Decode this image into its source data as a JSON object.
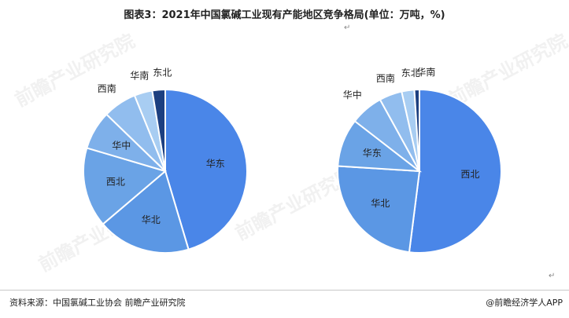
{
  "title": "图表3：2021年中国氯碱工业现有产能地区竞争格局(单位：万吨，%)",
  "paragraph_mark": "↵",
  "source": "资料来源：中国氯碱工业协会 前瞻产业研究院",
  "brand": "@前瞻经济学人APP",
  "watermark": "前瞻产业研究院",
  "chart_data": [
    {
      "type": "pie",
      "title": "",
      "slices": [
        {
          "label": "华东",
          "value": 44.5,
          "color": "#4a86e8"
        },
        {
          "label": "华北",
          "value": 18.0,
          "color": "#5b97e4"
        },
        {
          "label": "西北",
          "value": 15.5,
          "color": "#6aa3e6"
        },
        {
          "label": "华中",
          "value": 7.5,
          "color": "#7eb0ea"
        },
        {
          "label": "西南",
          "value": 6.5,
          "color": "#91bdee"
        },
        {
          "label": "华南",
          "value": 3.5,
          "color": "#a8cdf2"
        },
        {
          "label": "东北",
          "value": 2.5,
          "color": "#1c3f80"
        }
      ]
    },
    {
      "type": "pie",
      "title": "",
      "slices": [
        {
          "label": "西北",
          "value": 52.0,
          "color": "#4a86e8"
        },
        {
          "label": "华北",
          "value": 24.0,
          "color": "#5b97e4"
        },
        {
          "label": "华东",
          "value": 9.5,
          "color": "#6aa3e6"
        },
        {
          "label": "华中",
          "value": 6.5,
          "color": "#7eb0ea"
        },
        {
          "label": "西南",
          "value": 4.5,
          "color": "#91bdee"
        },
        {
          "label": "东北",
          "value": 2.5,
          "color": "#a8cdf2"
        },
        {
          "label": "华南",
          "value": 1.0,
          "color": "#1c3f80"
        }
      ]
    }
  ]
}
